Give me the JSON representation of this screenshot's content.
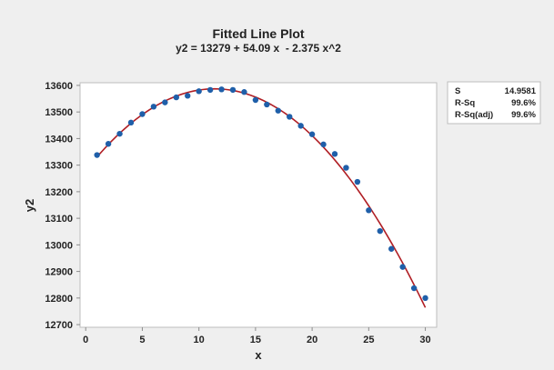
{
  "chart_data": {
    "type": "scatter",
    "title": "Fitted Line Plot",
    "subtitle": "y2 = 13279 + 54.09 x  - 2.375 x^2",
    "xlabel": "x",
    "ylabel": "y2",
    "xlim": [
      -0.5,
      31
    ],
    "ylim": [
      12690,
      13610
    ],
    "x_ticks": [
      0,
      5,
      10,
      15,
      20,
      25,
      30
    ],
    "y_ticks": [
      12700,
      12800,
      12900,
      13000,
      13100,
      13200,
      13300,
      13400,
      13500,
      13600
    ],
    "grid": false,
    "series": [
      {
        "x": [
          1,
          2,
          3,
          4,
          5,
          6,
          7,
          8,
          9,
          10,
          11,
          12,
          13,
          14,
          15,
          16,
          17,
          18,
          19,
          20,
          21,
          22,
          23,
          24,
          25,
          26,
          27,
          28,
          29,
          30
        ],
        "y": [
          13338,
          13380,
          13418,
          13460,
          13492,
          13520,
          13536,
          13555,
          13561,
          13578,
          13583,
          13585,
          13583,
          13575,
          13545,
          13528,
          13505,
          13482,
          13448,
          13416,
          13378,
          13342,
          13290,
          13237,
          13130,
          13052,
          12985,
          12917,
          12837,
          12800
        ]
      }
    ],
    "fit": {
      "type": "quadratic",
      "coefficients": {
        "intercept": 13279,
        "x": 54.09,
        "x2": -2.375
      },
      "x_range": [
        1,
        30
      ]
    },
    "colors": {
      "outer_background": "#efefef",
      "plot_background": "#ffffff",
      "points": "#1f5fa9",
      "fit_line": "#b01e24",
      "axis": "#8c8c8c"
    },
    "stats_table": {
      "rows": [
        {
          "label": "S",
          "value": "14.9581"
        },
        {
          "label": "R-Sq",
          "value": "99.6%"
        },
        {
          "label": "R-Sq(adj)",
          "value": "99.6%"
        }
      ]
    }
  }
}
